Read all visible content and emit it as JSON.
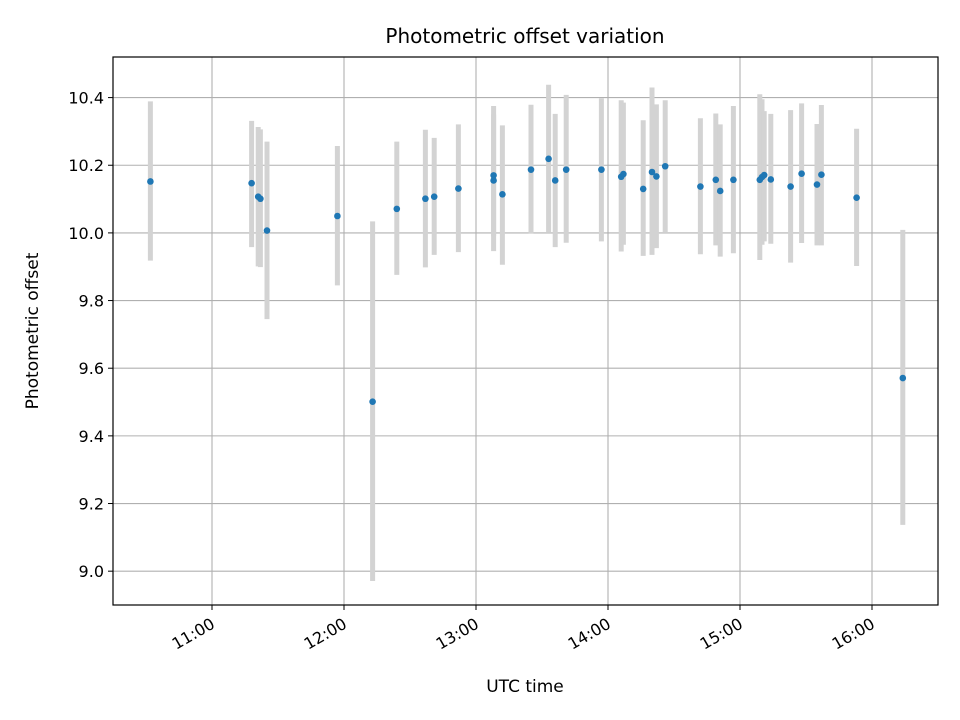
{
  "chart_data": {
    "type": "scatter",
    "title": "Photometric offset variation",
    "xlabel": "UTC time",
    "ylabel": "Photometric offset",
    "x_unit": "hours UTC",
    "xlim": [
      "10:15",
      "16:30"
    ],
    "ylim": [
      8.9,
      10.52
    ],
    "x_ticks": [
      "11:00",
      "12:00",
      "13:00",
      "14:00",
      "15:00",
      "16:00"
    ],
    "y_ticks": [
      "9.0",
      "9.2",
      "9.4",
      "9.6",
      "9.8",
      "10.0",
      "10.2",
      "10.4"
    ],
    "grid": true,
    "colors": {
      "point": "#1f77b4",
      "errorbar": "#d3d3d3",
      "grid": "#b0b0b0"
    },
    "series": [
      {
        "points": [
          {
            "x": "10:32",
            "y": 10.152,
            "ylo": 9.918,
            "yhi": 10.389
          },
          {
            "x": "11:18",
            "y": 10.147,
            "ylo": 9.958,
            "yhi": 10.331
          },
          {
            "x": "11:21",
            "y": 10.107,
            "ylo": 9.901,
            "yhi": 10.313
          },
          {
            "x": "11:22",
            "y": 10.101,
            "ylo": 9.899,
            "yhi": 10.306
          },
          {
            "x": "11:25",
            "y": 10.007,
            "ylo": 9.745,
            "yhi": 10.27
          },
          {
            "x": "11:57",
            "y": 10.05,
            "ylo": 9.845,
            "yhi": 10.257
          },
          {
            "x": "12:13",
            "y": 9.501,
            "ylo": 8.971,
            "yhi": 10.034
          },
          {
            "x": "12:24",
            "y": 10.071,
            "ylo": 9.876,
            "yhi": 10.27
          },
          {
            "x": "12:37",
            "y": 10.101,
            "ylo": 9.898,
            "yhi": 10.305
          },
          {
            "x": "12:41",
            "y": 10.107,
            "ylo": 9.935,
            "yhi": 10.281
          },
          {
            "x": "12:52",
            "y": 10.131,
            "ylo": 9.943,
            "yhi": 10.321
          },
          {
            "x": "13:08",
            "y": 10.155,
            "ylo": 9.946,
            "yhi": 10.375
          },
          {
            "x": "13:08",
            "y": 10.17,
            "ylo": 9.99,
            "yhi": 10.35
          },
          {
            "x": "13:12",
            "y": 10.114,
            "ylo": 9.906,
            "yhi": 10.318
          },
          {
            "x": "13:25",
            "y": 10.187,
            "ylo": 9.999,
            "yhi": 10.379
          },
          {
            "x": "13:33",
            "y": 10.219,
            "ylo": 10.0,
            "yhi": 10.438
          },
          {
            "x": "13:36",
            "y": 10.155,
            "ylo": 9.958,
            "yhi": 10.352
          },
          {
            "x": "13:41",
            "y": 10.187,
            "ylo": 9.971,
            "yhi": 10.408
          },
          {
            "x": "13:57",
            "y": 10.187,
            "ylo": 9.975,
            "yhi": 10.398
          },
          {
            "x": "14:06",
            "y": 10.166,
            "ylo": 9.945,
            "yhi": 10.392
          },
          {
            "x": "14:07",
            "y": 10.174,
            "ylo": 9.965,
            "yhi": 10.385
          },
          {
            "x": "14:16",
            "y": 10.13,
            "ylo": 9.932,
            "yhi": 10.333
          },
          {
            "x": "14:20",
            "y": 10.18,
            "ylo": 9.935,
            "yhi": 10.43
          },
          {
            "x": "14:22",
            "y": 10.167,
            "ylo": 9.955,
            "yhi": 10.38
          },
          {
            "x": "14:26",
            "y": 10.197,
            "ylo": 10.0,
            "yhi": 10.392
          },
          {
            "x": "14:42",
            "y": 10.137,
            "ylo": 9.937,
            "yhi": 10.339
          },
          {
            "x": "14:49",
            "y": 10.157,
            "ylo": 9.963,
            "yhi": 10.353
          },
          {
            "x": "14:51",
            "y": 10.124,
            "ylo": 9.93,
            "yhi": 10.321
          },
          {
            "x": "14:57",
            "y": 10.157,
            "ylo": 9.94,
            "yhi": 10.375
          },
          {
            "x": "15:09",
            "y": 10.157,
            "ylo": 9.92,
            "yhi": 10.41
          },
          {
            "x": "15:10",
            "y": 10.165,
            "ylo": 9.965,
            "yhi": 10.395
          },
          {
            "x": "15:11",
            "y": 10.171,
            "ylo": 9.975,
            "yhi": 10.36
          },
          {
            "x": "15:14",
            "y": 10.158,
            "ylo": 9.968,
            "yhi": 10.352
          },
          {
            "x": "15:23",
            "y": 10.137,
            "ylo": 9.912,
            "yhi": 10.363
          },
          {
            "x": "15:28",
            "y": 10.175,
            "ylo": 9.97,
            "yhi": 10.383
          },
          {
            "x": "15:35",
            "y": 10.143,
            "ylo": 9.963,
            "yhi": 10.322
          },
          {
            "x": "15:37",
            "y": 10.172,
            "ylo": 9.963,
            "yhi": 10.378
          },
          {
            "x": "15:53",
            "y": 10.104,
            "ylo": 9.902,
            "yhi": 10.308
          },
          {
            "x": "16:14",
            "y": 9.571,
            "ylo": 9.137,
            "yhi": 10.009
          }
        ]
      }
    ]
  }
}
